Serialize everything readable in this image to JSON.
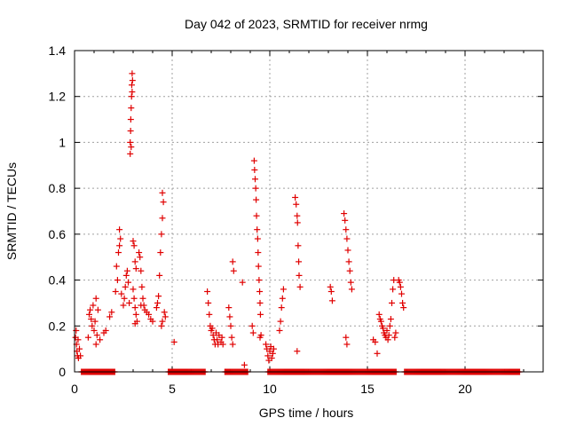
{
  "chart_data": {
    "type": "scatter",
    "title": "Day 042 of 2023, SRMTID for receiver nrmg",
    "xlabel": "GPS time / hours",
    "ylabel": "SRMTID / TECUs",
    "xlim": [
      0,
      24
    ],
    "ylim": [
      0,
      1.4
    ],
    "xticks": [
      0,
      5,
      10,
      15,
      20
    ],
    "yticks": [
      0,
      0.2,
      0.4,
      0.6,
      0.8,
      1,
      1.2,
      1.4
    ],
    "xtick_labels": [
      "0",
      "5",
      "10",
      "15",
      "20"
    ],
    "ytick_labels": [
      "0",
      "0.2",
      "0.4",
      "0.6",
      "0.8",
      "1",
      "1.2",
      "1.4"
    ],
    "grid": true,
    "marker": "plus",
    "color": "#e00000",
    "series": [
      {
        "name": "SRMTID",
        "points": [
          [
            0.05,
            0.15
          ],
          [
            0.08,
            0.18
          ],
          [
            0.1,
            0.12
          ],
          [
            0.12,
            0.09
          ],
          [
            0.15,
            0.07
          ],
          [
            0.18,
            0.14
          ],
          [
            0.2,
            0.06
          ],
          [
            0.25,
            0.1
          ],
          [
            0.3,
            0.07
          ],
          [
            0.7,
            0.15
          ],
          [
            0.75,
            0.25
          ],
          [
            0.8,
            0.27
          ],
          [
            0.85,
            0.23
          ],
          [
            0.9,
            0.2
          ],
          [
            0.95,
            0.29
          ],
          [
            1.0,
            0.18
          ],
          [
            1.05,
            0.22
          ],
          [
            1.1,
            0.12
          ],
          [
            1.15,
            0.16
          ],
          [
            1.2,
            0.27
          ],
          [
            1.1,
            0.32
          ],
          [
            1.3,
            0.14
          ],
          [
            1.5,
            0.17
          ],
          [
            1.6,
            0.18
          ],
          [
            1.8,
            0.24
          ],
          [
            1.9,
            0.26
          ],
          [
            2.1,
            0.35
          ],
          [
            2.15,
            0.46
          ],
          [
            2.2,
            0.4
          ],
          [
            2.25,
            0.52
          ],
          [
            2.3,
            0.55
          ],
          [
            2.35,
            0.58
          ],
          [
            2.3,
            0.62
          ],
          [
            2.4,
            0.34
          ],
          [
            2.5,
            0.29
          ],
          [
            2.55,
            0.32
          ],
          [
            2.6,
            0.37
          ],
          [
            2.65,
            0.42
          ],
          [
            2.7,
            0.44
          ],
          [
            2.75,
            0.39
          ],
          [
            2.8,
            0.3
          ],
          [
            2.85,
            0.95
          ],
          [
            2.85,
            1.0
          ],
          [
            2.87,
            1.05
          ],
          [
            2.88,
            1.1
          ],
          [
            2.9,
            1.15
          ],
          [
            2.92,
            1.2
          ],
          [
            2.93,
            1.25
          ],
          [
            2.95,
            1.3
          ],
          [
            2.9,
            0.98
          ],
          [
            2.95,
            1.22
          ],
          [
            2.97,
            1.27
          ],
          [
            3.0,
            0.57
          ],
          [
            3.05,
            0.55
          ],
          [
            3.1,
            0.48
          ],
          [
            3.0,
            0.36
          ],
          [
            3.05,
            0.32
          ],
          [
            3.1,
            0.28
          ],
          [
            3.15,
            0.25
          ],
          [
            3.2,
            0.22
          ],
          [
            3.1,
            0.21
          ],
          [
            3.15,
            0.45
          ],
          [
            3.3,
            0.52
          ],
          [
            3.35,
            0.5
          ],
          [
            3.4,
            0.44
          ],
          [
            3.45,
            0.37
          ],
          [
            3.5,
            0.32
          ],
          [
            3.4,
            0.29
          ],
          [
            3.55,
            0.29
          ],
          [
            3.6,
            0.27
          ],
          [
            3.7,
            0.26
          ],
          [
            3.8,
            0.25
          ],
          [
            3.9,
            0.23
          ],
          [
            4.0,
            0.22
          ],
          [
            4.2,
            0.28
          ],
          [
            4.25,
            0.3
          ],
          [
            4.3,
            0.33
          ],
          [
            4.35,
            0.42
          ],
          [
            4.4,
            0.52
          ],
          [
            4.45,
            0.6
          ],
          [
            4.5,
            0.67
          ],
          [
            4.55,
            0.74
          ],
          [
            4.5,
            0.78
          ],
          [
            4.45,
            0.2
          ],
          [
            4.5,
            0.22
          ],
          [
            4.6,
            0.26
          ],
          [
            4.65,
            0.24
          ],
          [
            5.1,
            0.13
          ],
          [
            6.8,
            0.35
          ],
          [
            6.85,
            0.3
          ],
          [
            6.9,
            0.25
          ],
          [
            6.95,
            0.2
          ],
          [
            7.0,
            0.18
          ],
          [
            7.05,
            0.19
          ],
          [
            7.1,
            0.16
          ],
          [
            7.15,
            0.14
          ],
          [
            7.2,
            0.12
          ],
          [
            7.25,
            0.17
          ],
          [
            7.3,
            0.14
          ],
          [
            7.35,
            0.12
          ],
          [
            7.4,
            0.16
          ],
          [
            7.5,
            0.13
          ],
          [
            7.55,
            0.15
          ],
          [
            7.6,
            0.12
          ],
          [
            7.9,
            0.28
          ],
          [
            7.95,
            0.24
          ],
          [
            8.0,
            0.2
          ],
          [
            8.05,
            0.15
          ],
          [
            8.1,
            0.12
          ],
          [
            8.1,
            0.48
          ],
          [
            8.15,
            0.44
          ],
          [
            8.6,
            0.39
          ],
          [
            8.7,
            0.03
          ],
          [
            9.1,
            0.2
          ],
          [
            9.15,
            0.17
          ],
          [
            9.2,
            0.92
          ],
          [
            9.22,
            0.88
          ],
          [
            9.25,
            0.84
          ],
          [
            9.28,
            0.8
          ],
          [
            9.3,
            0.75
          ],
          [
            9.32,
            0.68
          ],
          [
            9.35,
            0.62
          ],
          [
            9.38,
            0.58
          ],
          [
            9.4,
            0.52
          ],
          [
            9.42,
            0.46
          ],
          [
            9.45,
            0.4
          ],
          [
            9.48,
            0.35
          ],
          [
            9.5,
            0.3
          ],
          [
            9.52,
            0.25
          ],
          [
            9.55,
            0.16
          ],
          [
            9.5,
            0.15
          ],
          [
            9.8,
            0.12
          ],
          [
            9.85,
            0.1
          ],
          [
            9.9,
            0.07
          ],
          [
            9.95,
            0.05
          ],
          [
            10.0,
            0.09
          ],
          [
            10.05,
            0.11
          ],
          [
            10.1,
            0.06
          ],
          [
            10.15,
            0.08
          ],
          [
            10.2,
            0.1
          ],
          [
            10.5,
            0.18
          ],
          [
            10.55,
            0.22
          ],
          [
            10.6,
            0.28
          ],
          [
            10.65,
            0.32
          ],
          [
            10.7,
            0.36
          ],
          [
            11.3,
            0.76
          ],
          [
            11.35,
            0.73
          ],
          [
            11.4,
            0.68
          ],
          [
            11.42,
            0.65
          ],
          [
            11.45,
            0.55
          ],
          [
            11.48,
            0.48
          ],
          [
            11.5,
            0.42
          ],
          [
            11.55,
            0.37
          ],
          [
            11.4,
            0.09
          ],
          [
            13.1,
            0.37
          ],
          [
            13.15,
            0.35
          ],
          [
            13.2,
            0.31
          ],
          [
            13.8,
            0.69
          ],
          [
            13.85,
            0.66
          ],
          [
            13.9,
            0.62
          ],
          [
            13.95,
            0.58
          ],
          [
            14.0,
            0.53
          ],
          [
            14.05,
            0.48
          ],
          [
            14.1,
            0.44
          ],
          [
            14.15,
            0.39
          ],
          [
            14.2,
            0.36
          ],
          [
            13.9,
            0.15
          ],
          [
            13.95,
            0.12
          ],
          [
            15.3,
            0.14
          ],
          [
            15.4,
            0.13
          ],
          [
            15.5,
            0.08
          ],
          [
            15.6,
            0.25
          ],
          [
            15.65,
            0.23
          ],
          [
            15.7,
            0.22
          ],
          [
            15.75,
            0.2
          ],
          [
            15.8,
            0.19
          ],
          [
            15.85,
            0.17
          ],
          [
            15.9,
            0.16
          ],
          [
            15.95,
            0.15
          ],
          [
            16.0,
            0.18
          ],
          [
            16.05,
            0.14
          ],
          [
            16.1,
            0.16
          ],
          [
            16.15,
            0.2
          ],
          [
            16.2,
            0.23
          ],
          [
            16.25,
            0.3
          ],
          [
            16.3,
            0.36
          ],
          [
            16.35,
            0.4
          ],
          [
            16.4,
            0.15
          ],
          [
            16.45,
            0.17
          ],
          [
            16.6,
            0.4
          ],
          [
            16.65,
            0.39
          ],
          [
            16.7,
            0.37
          ],
          [
            16.75,
            0.34
          ],
          [
            16.8,
            0.3
          ],
          [
            16.85,
            0.28
          ]
        ],
        "zero_runs": [
          [
            0.35,
            2.1
          ],
          [
            4.8,
            6.7
          ],
          [
            7.7,
            8.9
          ],
          [
            9.9,
            16.5
          ],
          [
            16.9,
            22.8
          ]
        ]
      }
    ]
  }
}
